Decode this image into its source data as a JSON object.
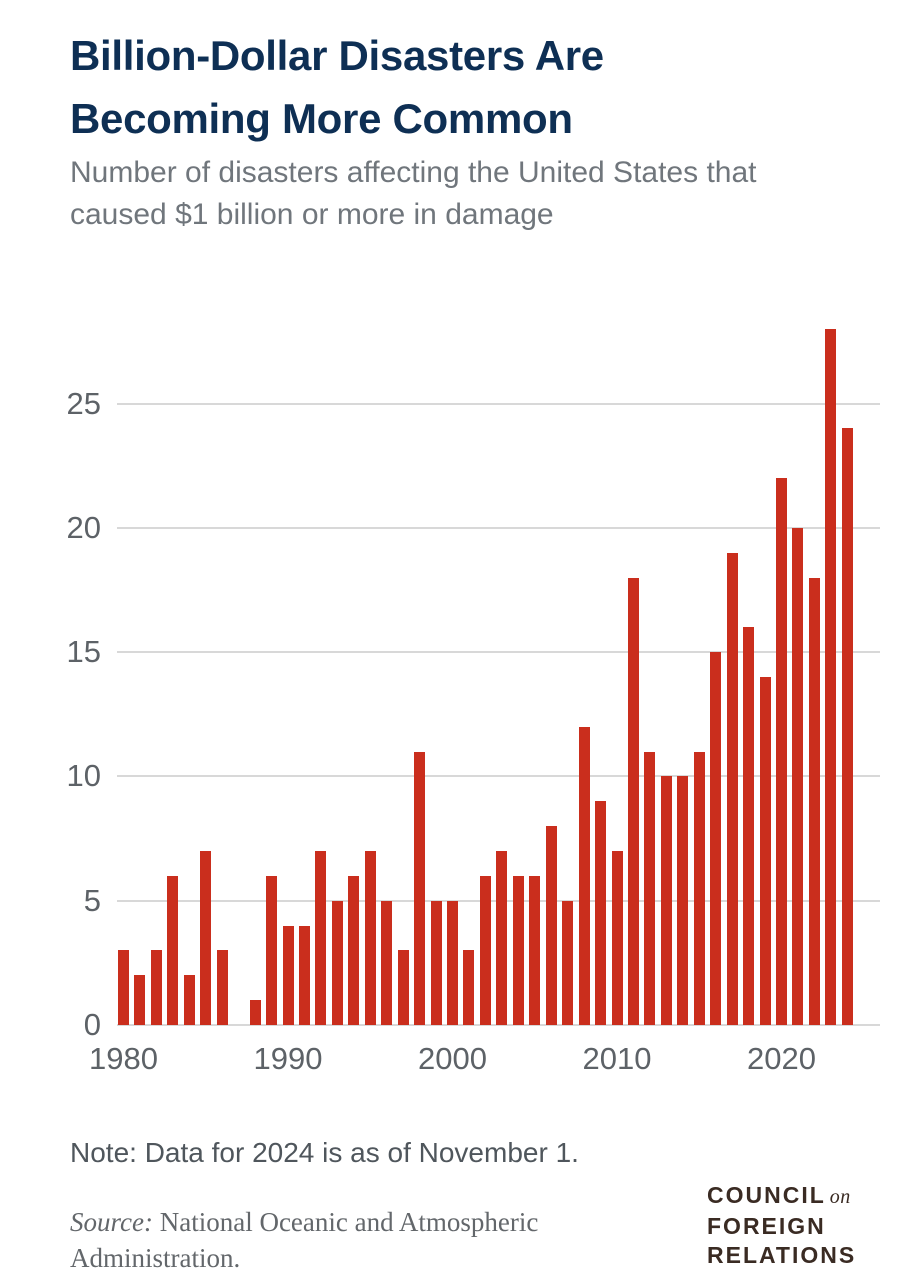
{
  "header": {
    "title": "Billion-Dollar Disasters Are Becoming More Common",
    "subtitle": "Number of disasters affecting the United States that caused $1 billion or more in damage"
  },
  "chart_data": {
    "type": "bar",
    "title": "Billion-Dollar Disasters Are Becoming More Common",
    "subtitle": "Number of disasters affecting the United States that caused $1 billion or more in damage",
    "xlabel": "",
    "ylabel": "",
    "x": [
      1980,
      1981,
      1982,
      1983,
      1984,
      1985,
      1986,
      1987,
      1988,
      1989,
      1990,
      1991,
      1992,
      1993,
      1994,
      1995,
      1996,
      1997,
      1998,
      1999,
      2000,
      2001,
      2002,
      2003,
      2004,
      2005,
      2006,
      2007,
      2008,
      2009,
      2010,
      2011,
      2012,
      2013,
      2014,
      2015,
      2016,
      2017,
      2018,
      2019,
      2020,
      2021,
      2022,
      2023,
      2024
    ],
    "values": [
      3,
      2,
      3,
      6,
      2,
      7,
      3,
      0,
      1,
      6,
      4,
      4,
      7,
      5,
      6,
      7,
      5,
      3,
      11,
      5,
      5,
      3,
      6,
      7,
      6,
      6,
      8,
      5,
      12,
      9,
      7,
      18,
      11,
      10,
      10,
      11,
      15,
      19,
      16,
      14,
      22,
      20,
      18,
      28,
      24
    ],
    "xticks": [
      1980,
      1990,
      2000,
      2010,
      2020
    ],
    "yticks": [
      0,
      5,
      10,
      15,
      20,
      25
    ],
    "ylim": [
      0,
      28
    ],
    "grid": true,
    "legend": "none",
    "bar_color": "#ca2e1d",
    "gridline_color": "#d8d8d8",
    "tick_label_color": "#5d6267"
  },
  "footer": {
    "note": "Note: Data for 2024 is as of November 1.",
    "source_label": "Source:",
    "source_text": "National Oceanic and Atmospheric Administration."
  },
  "logo": {
    "council": "COUNCIL",
    "on": "on",
    "foreign": "FOREIGN",
    "relations": "RELATIONS",
    "color": "#3a2b23"
  },
  "colors": {
    "title_navy": "#0e2f54",
    "subtitle_gray": "#70767c",
    "note_gray": "#4f565c",
    "source_gray": "#63676b",
    "background": "#ffffff"
  }
}
